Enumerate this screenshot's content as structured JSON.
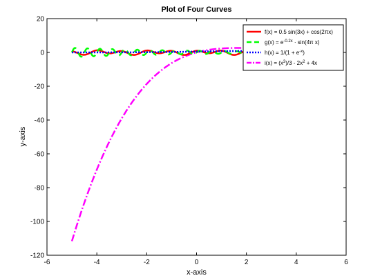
{
  "chart_data": {
    "type": "line",
    "title": "Plot of Four Curves",
    "xlabel": "x-axis",
    "ylabel": "y-axis",
    "xlim": [
      -6,
      6
    ],
    "ylim": [
      -120,
      20
    ],
    "x_ticks": [
      -6,
      -4,
      -2,
      0,
      2,
      4,
      6
    ],
    "y_ticks": [
      -120,
      -100,
      -80,
      -60,
      -40,
      -20,
      0,
      20
    ],
    "x_tick_labels": [
      "-6",
      "-4",
      "-2",
      "0",
      "2",
      "4",
      "6"
    ],
    "y_tick_labels": [
      "-120",
      "-100",
      "-80",
      "-60",
      "-40",
      "-20",
      "0",
      "20"
    ],
    "x_range": [
      -5,
      5
    ],
    "grid": false,
    "legend_position": "top-right",
    "series": [
      {
        "name": "f(x) = 0.5 sin(3x) + cos(2πx)",
        "legend": {
          "pre": "f(x) = 0.5 sin(3x) + cos(2πx)"
        },
        "formula": "0.5*sin(3x)+cos(2*pi*x)",
        "color": "#ff0000",
        "style": "solid"
      },
      {
        "name": "g(x) = e^{-0.2x} · sin(4πx)",
        "legend": {
          "pre": "g(x) = e",
          "sup": "-0.2x",
          "post": " · sin(4π x)"
        },
        "formula": "exp(-0.2x)*sin(4*pi*x)",
        "color": "#00ff00",
        "style": "dashed"
      },
      {
        "name": "h(x) = 1/(1 + e^{-x})",
        "legend": {
          "pre": "h(x) = 1/(1 + e",
          "sup": "-x",
          "post": ")"
        },
        "formula": "1/(1+exp(-x))",
        "color": "#0000ff",
        "style": "dotted"
      },
      {
        "name": "i(x) = (x^3)/3 - 2x^2 + 4x",
        "legend": {
          "pre": "i(x) = (x",
          "sup": "3",
          "mid": ")/3 - 2x",
          "sup2": "2",
          "post": " + 4x"
        },
        "formula": "x^3/3-2x^2+4x",
        "color": "#ff00ff",
        "style": "dashdot"
      }
    ]
  }
}
